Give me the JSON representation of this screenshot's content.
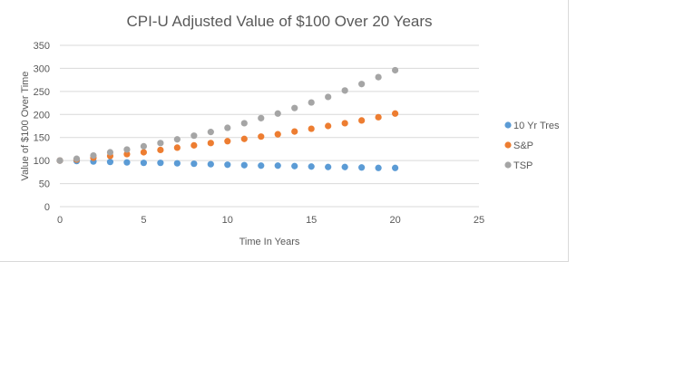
{
  "chart_data": {
    "type": "scatter",
    "title": "CPI-U Adjusted Value of $100 Over 20 Years",
    "xlabel": "Time In Years",
    "ylabel": "Value of $100 Over Time",
    "xlim": [
      0,
      25
    ],
    "ylim": [
      0,
      350
    ],
    "x_ticks": [
      0,
      5,
      10,
      15,
      20,
      25
    ],
    "y_ticks": [
      0,
      50,
      100,
      150,
      200,
      250,
      300,
      350
    ],
    "grid": "horizontal",
    "legend_position": "right",
    "x": [
      0,
      1,
      2,
      3,
      4,
      5,
      6,
      7,
      8,
      9,
      10,
      11,
      12,
      13,
      14,
      15,
      16,
      17,
      18,
      19,
      20
    ],
    "series": [
      {
        "name": "10 Yr Tres",
        "color": "#5b9bd5",
        "values": [
          100,
          99,
          98,
          97,
          96,
          95,
          95,
          94,
          93,
          92,
          91,
          90,
          89,
          89,
          88,
          87,
          86,
          86,
          85,
          84,
          84
        ]
      },
      {
        "name": "S&P",
        "color": "#ed7d31",
        "values": [
          100,
          102,
          106,
          110,
          114,
          118,
          123,
          128,
          133,
          138,
          142,
          147,
          152,
          157,
          163,
          169,
          175,
          181,
          187,
          194,
          202
        ]
      },
      {
        "name": "TSP",
        "color": "#a5a5a5",
        "values": [
          100,
          104,
          111,
          118,
          124,
          131,
          138,
          146,
          154,
          162,
          171,
          181,
          192,
          202,
          214,
          226,
          238,
          252,
          266,
          281,
          296
        ]
      }
    ]
  }
}
